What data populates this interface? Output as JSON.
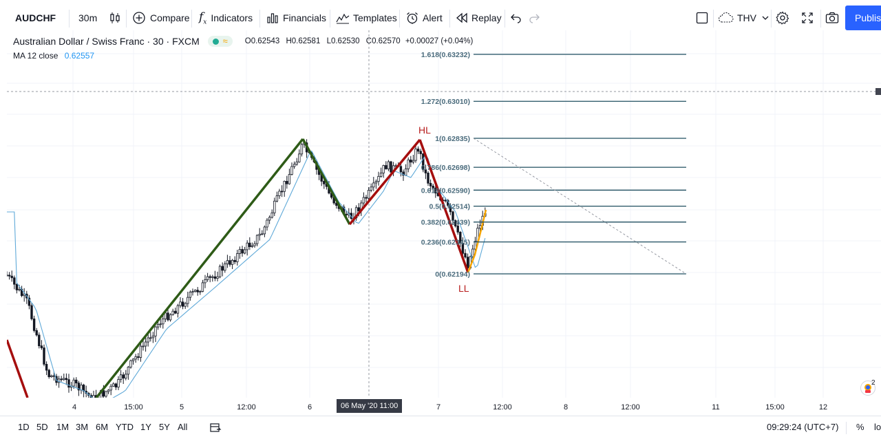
{
  "toolbar": {
    "symbol": "AUDCHF",
    "interval": "30m",
    "compare": "Compare",
    "indicators": "Indicators",
    "financials": "Financials",
    "templates": "Templates",
    "alert": "Alert",
    "replay": "Replay",
    "layout_name": "THV",
    "publish": "Publis"
  },
  "legend": {
    "instrument": "Australian Dollar / Swiss Franc · 30 · FXCM",
    "open_label": "O",
    "open": "0.62543",
    "high_label": "H",
    "high": "0.62581",
    "low_label": "L",
    "low": "0.62530",
    "close_label": "C",
    "close": "0.62570",
    "change": "+0.00027 (+0.04%)",
    "ma_label": "MA 12 close",
    "ma_value": "0.62557"
  },
  "chart_data": {
    "type": "candlestick",
    "instrument": "AUDCHF",
    "timeframe": "30m",
    "x_tick_labels": [
      "4",
      "15:00",
      "5",
      "12:00",
      "6",
      "7",
      "12:00",
      "8",
      "12:00",
      "11",
      "15:00",
      "12"
    ],
    "crosshair_label": "06 May '20   11:00",
    "fibonacci": [
      {
        "ratio": "1.618",
        "price": 0.63232,
        "label": "1.618(0.63232)"
      },
      {
        "ratio": "1.272",
        "price": 0.6301,
        "label": "1.272(0.63010)"
      },
      {
        "ratio": "1",
        "price": 0.62835,
        "label": "1(0.62835)"
      },
      {
        "ratio": "0.786",
        "price": 0.62698,
        "label": "0.786(0.62698)"
      },
      {
        "ratio": "0.618",
        "price": 0.6259,
        "label": "0.618(0.62590)"
      },
      {
        "ratio": "0.5",
        "price": 0.62514,
        "label": "0.5(0.62514)"
      },
      {
        "ratio": "0.382",
        "price": 0.62439,
        "label": "0.382(0.62439)"
      },
      {
        "ratio": "0.236",
        "price": 0.62345,
        "label": "0.236(0.62345)"
      },
      {
        "ratio": "0",
        "price": 0.62194,
        "label": "0(0.62194)"
      }
    ],
    "annotations": [
      "HL",
      "LL"
    ],
    "colors": {
      "up_trend": "#2e5b17",
      "down_trend": "#a50e0e",
      "ma_line": "#5fa9d8",
      "fib_line": "#1f4e5f",
      "projection": "#f7a600"
    }
  },
  "bottom": {
    "ranges": [
      "1D",
      "5D",
      "1M",
      "3M",
      "6M",
      "YTD",
      "1Y",
      "5Y",
      "All"
    ],
    "clock": "09:29:24 (UTC+7)",
    "percent": "%",
    "log": "lo"
  },
  "badge_count": "2"
}
